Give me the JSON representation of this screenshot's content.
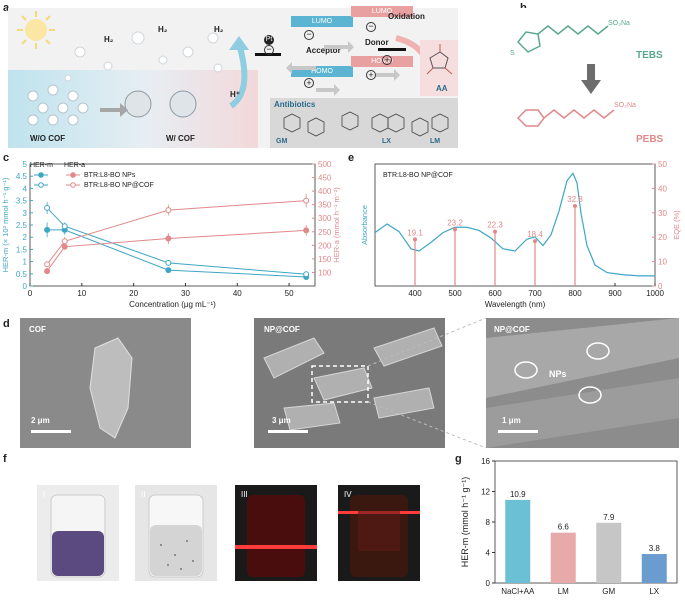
{
  "panel_labels": {
    "a": "a",
    "b": "b",
    "c": "c",
    "d": "d",
    "e": "e",
    "f": "f",
    "g": "g"
  },
  "panel_a": {
    "h2": "H₂",
    "wo_cof": "W/O COF",
    "w_cof": "W/ COF",
    "lumo": "LUMO",
    "homo": "HOMO",
    "pt": "Pt",
    "acceptor": "Acceptor",
    "donor": "Donor",
    "oxidation": "Oxidation",
    "h_plus": "H⁺",
    "antibiotics": "Antibiotics",
    "aa": "AA",
    "gm": "GM",
    "lx": "LX",
    "lm": "LM",
    "minus": "−",
    "plus": "+",
    "colors": {
      "lumo_acc": "#5bb5d2",
      "lumo_don": "#e8a0a0",
      "homo_acc": "#5bb5d2",
      "homo_don": "#e8a0a0"
    }
  },
  "panel_b": {
    "teb_name": "TEBS",
    "peb_name": "PEBS",
    "so3na": "SO₃Na",
    "colors": {
      "tebs": "#5aa88f",
      "pebs": "#e0888a"
    }
  },
  "panel_c": {
    "legend_head_m": "HER-m",
    "legend_head_a": "HER-a",
    "legend_np": "BTR:L8-BO NPs",
    "legend_npcof": "BTR:L8-BO NP@COF"
  },
  "panel_d": {
    "img1": "COF",
    "img2": "NP@COF",
    "img3": "NP@COF",
    "scale1": "2 μm",
    "scale2": "3 μm",
    "scale3": "1 μm",
    "nps": "NPs"
  },
  "panel_e": {
    "legend": "BTR:L8-BO NP@COF"
  },
  "panel_f": {
    "vials": [
      "I",
      "II",
      "III",
      "IV"
    ]
  },
  "chart_data": [
    {
      "type": "line",
      "panel": "c",
      "xlabel": "Concentration (μg mL⁻¹)",
      "ylabel": "HER-m (× 10³ mmol h⁻¹ g⁻¹)",
      "y2label": "HER-a (mmol h⁻¹ m⁻²)",
      "xlim": [
        0,
        55
      ],
      "ylim": [
        0,
        5
      ],
      "y2lim": [
        50,
        500
      ],
      "xticks": [
        0,
        10,
        20,
        30,
        40,
        50
      ],
      "yticks": [
        0,
        0.5,
        1,
        1.5,
        2,
        2.5,
        3,
        3.5,
        4,
        4.5,
        5
      ],
      "y2ticks": [
        100,
        150,
        200,
        250,
        300,
        350,
        400,
        450,
        500
      ],
      "series": [
        {
          "name": "BTR:L8-BO NPs",
          "axis": "left",
          "x": [
            3.3,
            6.7,
            26.7,
            53.3
          ],
          "y": [
            2.3,
            2.3,
            0.65,
            0.37
          ],
          "err": [
            0.3,
            0.2,
            0.05,
            0.03
          ],
          "color": "#3ea6c5",
          "marker": "filled"
        },
        {
          "name": "BTR:L8-BO NP@COF",
          "axis": "left",
          "x": [
            3.3,
            6.7,
            26.7,
            53.3
          ],
          "y": [
            3.2,
            2.45,
            0.95,
            0.48
          ],
          "err": [
            0.25,
            0.15,
            0.05,
            0.04
          ],
          "color": "#3ea6c5",
          "marker": "open"
        },
        {
          "name": "BTR:L8-BO NPs",
          "axis": "right",
          "x": [
            3.3,
            6.7,
            26.7,
            53.3
          ],
          "y": [
            105,
            195,
            225,
            255
          ],
          "err": [
            10,
            10,
            20,
            20
          ],
          "color": "#e0888a",
          "marker": "filled"
        },
        {
          "name": "BTR:L8-BO NP@COF",
          "axis": "right",
          "x": [
            3.3,
            6.7,
            26.7,
            53.3
          ],
          "y": [
            130,
            215,
            330,
            365
          ],
          "err": [
            10,
            15,
            20,
            25
          ],
          "color": "#e0888a",
          "marker": "open"
        }
      ]
    },
    {
      "type": "line",
      "panel": "e",
      "xlabel": "Wavelength (nm)",
      "ylabel": "Absorbance",
      "y2label": "EQE (%)",
      "xlim": [
        300,
        1000
      ],
      "y2lim": [
        0,
        50
      ],
      "xticks": [
        400,
        500,
        600,
        700,
        800,
        900,
        1000
      ],
      "y2ticks": [
        0,
        10,
        20,
        30,
        40,
        50
      ],
      "absorbance": {
        "x": [
          300,
          330,
          360,
          390,
          410,
          440,
          470,
          500,
          530,
          560,
          590,
          620,
          650,
          680,
          700,
          720,
          740,
          760,
          780,
          795,
          805,
          815,
          830,
          850,
          880,
          920,
          960,
          1000
        ],
        "y": [
          0.42,
          0.5,
          0.43,
          0.27,
          0.25,
          0.33,
          0.42,
          0.47,
          0.47,
          0.44,
          0.37,
          0.27,
          0.25,
          0.36,
          0.38,
          0.3,
          0.4,
          0.62,
          0.9,
          0.97,
          0.88,
          0.6,
          0.3,
          0.12,
          0.05,
          0.03,
          0.02,
          0.02
        ],
        "color": "#3ea6c5"
      },
      "eqe": {
        "x": [
          400,
          500,
          600,
          700,
          800
        ],
        "y": [
          19.1,
          23.2,
          22.3,
          18.4,
          32.8
        ],
        "labels": [
          "19.1",
          "23.2",
          "22.3",
          "18.4",
          "32.8"
        ],
        "color": "#e0888a"
      }
    },
    {
      "type": "bar",
      "panel": "g",
      "ylabel": "HER-m (mmol h⁻¹ g⁻¹)",
      "ylim": [
        0,
        16
      ],
      "yticks": [
        0,
        4,
        8,
        12,
        16
      ],
      "categories": [
        "NaCl+AA",
        "LM",
        "GM",
        "LX"
      ],
      "values": [
        10.9,
        6.6,
        7.9,
        3.8
      ],
      "labels": [
        "10.9",
        "6.6",
        "7.9",
        "3.8"
      ],
      "colors": [
        "#6cc0d6",
        "#e7a9a9",
        "#c6c6c6",
        "#6a9cd0"
      ]
    }
  ]
}
